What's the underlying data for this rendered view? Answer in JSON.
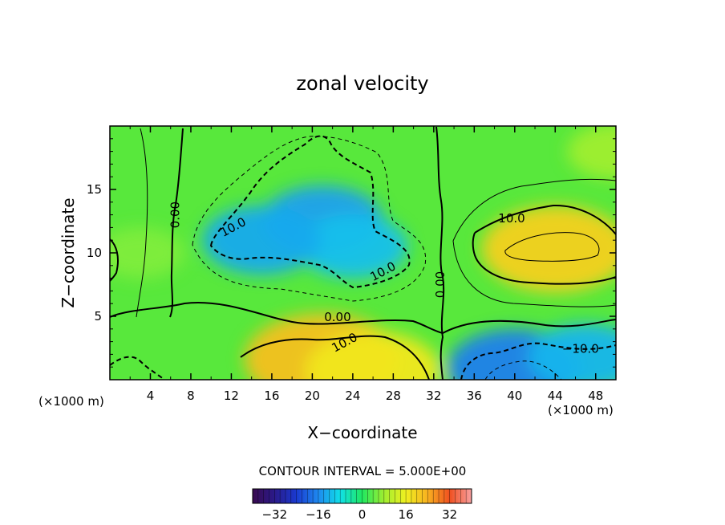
{
  "chart_data": {
    "type": "heatmap",
    "title": "zonal velocity",
    "xlabel": "X−coordinate",
    "ylabel": "Z−coordinate",
    "x_unit_left": "(×1000 m)",
    "x_unit_right": "(×1000 m)",
    "xlim": [
      0,
      50
    ],
    "ylim": [
      0,
      20
    ],
    "x_ticks": [
      "4",
      "8",
      "12",
      "16",
      "20",
      "24",
      "28",
      "32",
      "36",
      "40",
      "44",
      "48"
    ],
    "y_ticks": [
      "5",
      "10",
      "15"
    ],
    "contour_interval_label": "CONTOUR INTERVAL = 5.000E+00",
    "colorbar": {
      "range": [
        -40,
        40
      ],
      "ticks": [
        "−32",
        "−16",
        "0",
        "16",
        "32"
      ]
    },
    "contour_labels": [
      {
        "text": "0.00",
        "x": 6.5,
        "y": 13
      },
      {
        "text": "10.0",
        "x": 12.2,
        "y": 12
      },
      {
        "text": "10.0",
        "x": 27.0,
        "y": 8.5
      },
      {
        "text": "0.00",
        "x": 32.7,
        "y": 7.5
      },
      {
        "text": "10.0",
        "x": 39.7,
        "y": 12.7
      },
      {
        "text": "0.00",
        "x": 22.5,
        "y": 4.9
      },
      {
        "text": "10.0",
        "x": 23.2,
        "y": 2.9
      },
      {
        "text": "−10.0",
        "x": 46.5,
        "y": 2.4
      }
    ],
    "regions": [
      {
        "x": 21,
        "y": 12.5,
        "value": -14
      },
      {
        "x": 24,
        "y": 10.5,
        "value": -11
      },
      {
        "x": 15,
        "y": 11,
        "value": -13
      },
      {
        "x": 44,
        "y": 10.3,
        "value": 20
      },
      {
        "x": 21,
        "y": 1.6,
        "value": 22
      },
      {
        "x": 26,
        "y": 0.7,
        "value": 17
      },
      {
        "x": 40,
        "y": 0.9,
        "value": -17
      },
      {
        "x": 47,
        "y": 1.8,
        "value": -12
      },
      {
        "x": 3,
        "y": 10,
        "value": 6
      },
      {
        "x": 50,
        "y": 18,
        "value": 8
      }
    ]
  }
}
